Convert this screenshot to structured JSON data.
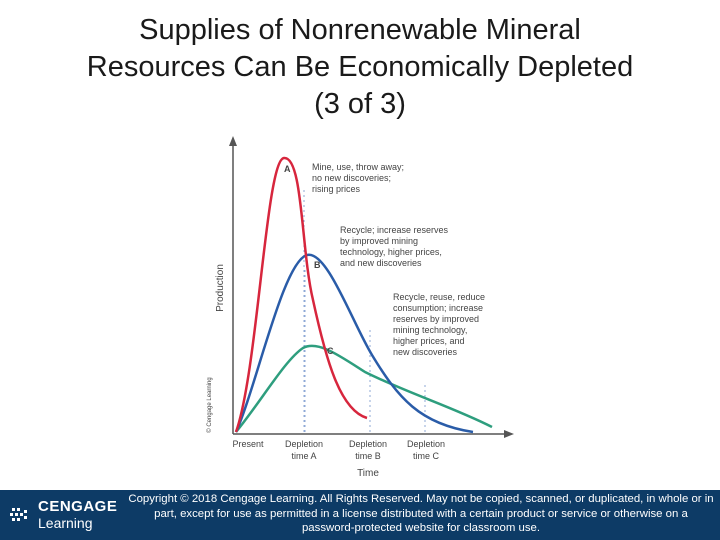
{
  "slide": {
    "title_lines": [
      "Supplies of Nonrenewable Mineral",
      "Resources Can Be Economically Depleted",
      "(3 of 3)"
    ]
  },
  "chart_data": {
    "type": "line",
    "title": "",
    "xlabel": "Time",
    "ylabel": "Production",
    "x_tick_labels": [
      {
        "lines": [
          "Present"
        ]
      },
      {
        "lines": [
          "Depletion",
          "time A"
        ]
      },
      {
        "lines": [
          "Depletion",
          "time B"
        ]
      },
      {
        "lines": [
          "Depletion",
          "time C"
        ]
      }
    ],
    "grid": false,
    "series": [
      {
        "name": "A",
        "color": "#d7263d",
        "annotation": [
          "Mine, use, throw away;",
          "no new discoveries;",
          "rising prices"
        ]
      },
      {
        "name": "B",
        "color": "#2a5ca8",
        "annotation": [
          "Recycle; increase reserves",
          "by improved mining",
          "technology, higher prices,",
          "and new discoveries"
        ]
      },
      {
        "name": "C",
        "color": "#2e9e7e",
        "annotation": [
          "Recycle, reuse, reduce",
          "consumption; increase",
          "reserves by improved",
          "mining technology,",
          "higher prices, and",
          "new discoveries"
        ]
      }
    ],
    "credit": "© Cengage Learning"
  },
  "footer": {
    "logo_top": "CENGAGE",
    "logo_bottom": "Learning",
    "copyright": "Copyright © 2018 Cengage Learning. All Rights Reserved. May not be copied, scanned, or duplicated, in whole or in part, except for use as permitted in a license distributed with a certain product or service or otherwise on a password-protected website for classroom use."
  },
  "colors": {
    "footer_bg": "#0d3b66",
    "axis": "#555555",
    "dotted": "#8fa9d6"
  }
}
